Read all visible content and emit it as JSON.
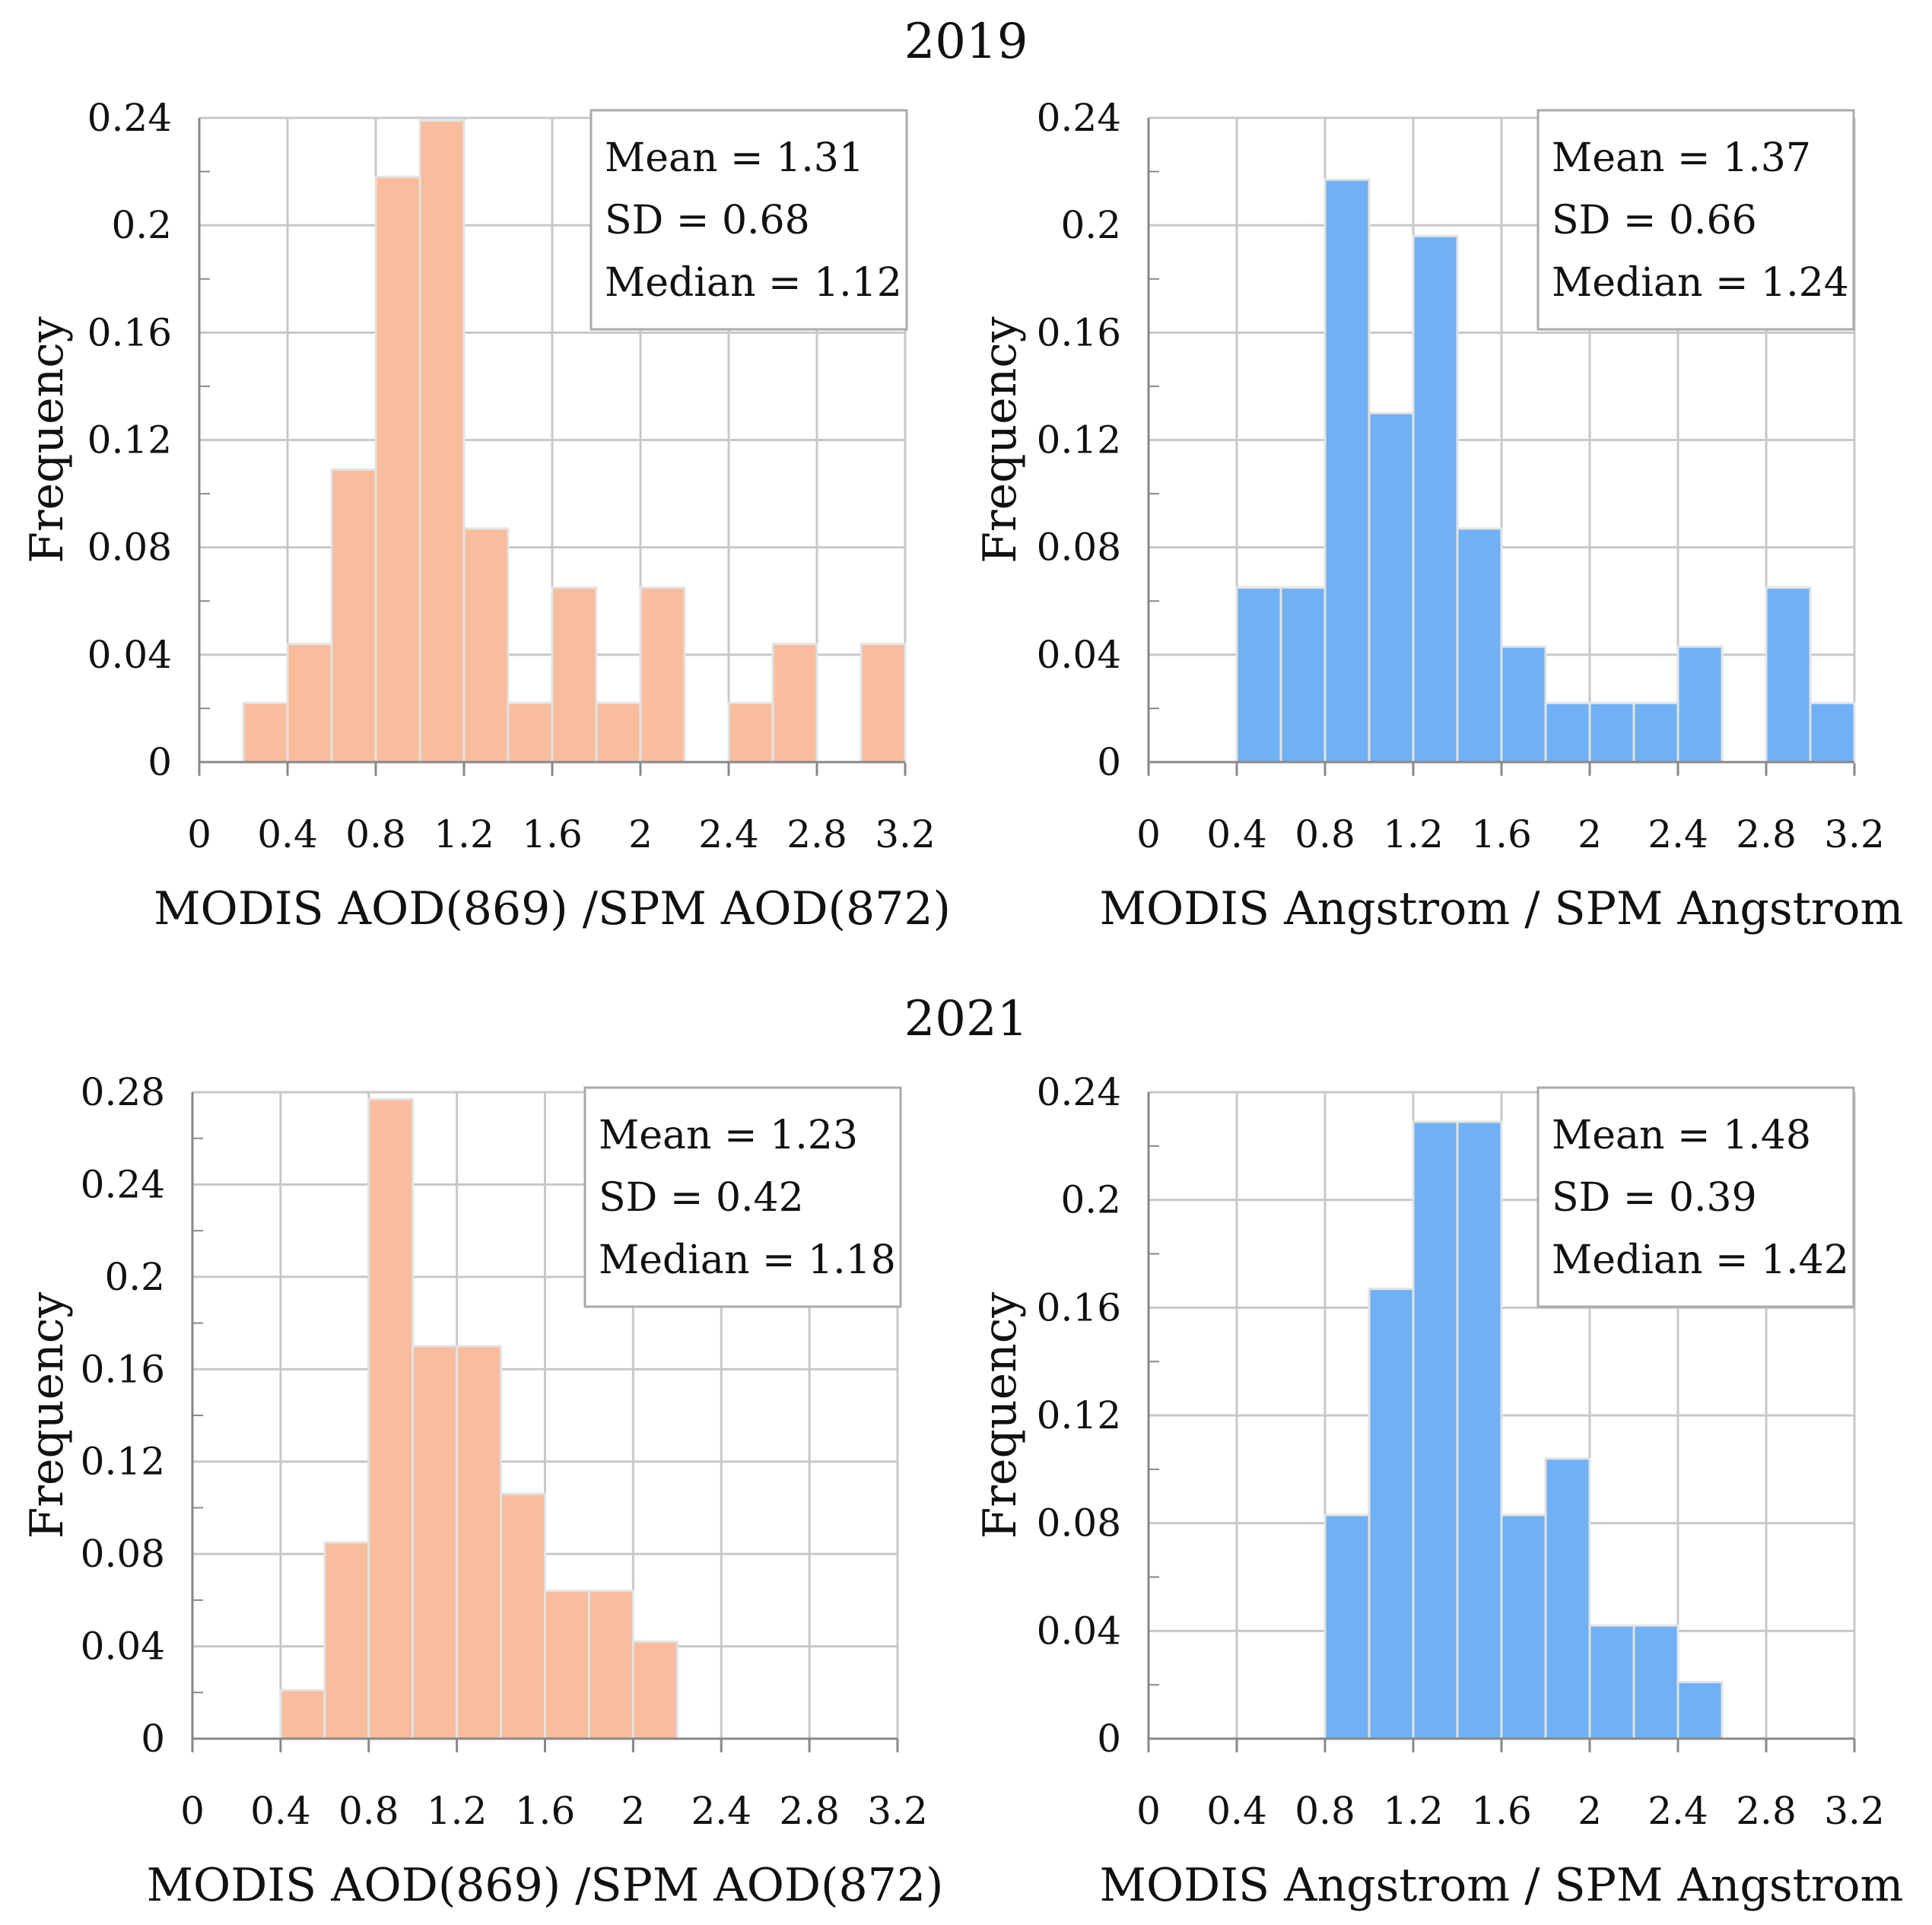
{
  "figure": {
    "year_titles": [
      "2019",
      "2021"
    ]
  },
  "colors": {
    "aod_fill": "#f9bc9c",
    "angstrom_fill": "#6fb1f4",
    "bar_stroke": "#e3e3e3",
    "grid": "#c8c8c8",
    "axis": "#888888"
  },
  "chart_data": [
    {
      "type": "bar",
      "year": "2019",
      "title": "",
      "xlabel": "MODIS AOD(869) /SPM AOD(872)",
      "ylabel": "Frequency",
      "xlim": [
        0,
        3.2
      ],
      "ylim": [
        0,
        0.24
      ],
      "xticks": [
        "0",
        "0.4",
        "0.8",
        "1.2",
        "1.6",
        "2",
        "2.4",
        "2.8",
        "3.2"
      ],
      "yticks": [
        "0",
        "0.04",
        "0.08",
        "0.12",
        "0.16",
        "0.2",
        "0.24"
      ],
      "bin_width": 0.2,
      "bin_starts": [
        0.2,
        0.4,
        0.6,
        0.8,
        1.0,
        1.2,
        1.4,
        1.6,
        1.8,
        2.0,
        2.2,
        2.4,
        2.6,
        2.8,
        3.0
      ],
      "values": [
        0.022,
        0.044,
        0.109,
        0.218,
        0.239,
        0.087,
        0.022,
        0.065,
        0.022,
        0.065,
        0,
        0.022,
        0.044,
        0,
        0.044
      ],
      "color": "aod",
      "stats": [
        "Mean = 1.31",
        "SD = 0.68",
        "Median = 1.12"
      ]
    },
    {
      "type": "bar",
      "year": "2019",
      "title": "",
      "xlabel": "MODIS Angstrom / SPM Angstrom",
      "ylabel": "Frequency",
      "xlim": [
        0,
        3.2
      ],
      "ylim": [
        0,
        0.24
      ],
      "xticks": [
        "0",
        "0.4",
        "0.8",
        "1.2",
        "1.6",
        "2",
        "2.4",
        "2.8",
        "3.2"
      ],
      "yticks": [
        "0",
        "0.04",
        "0.08",
        "0.12",
        "0.16",
        "0.2",
        "0.24"
      ],
      "bin_width": 0.2,
      "bin_starts": [
        0.4,
        0.6,
        0.8,
        1.0,
        1.2,
        1.4,
        1.6,
        1.8,
        2.0,
        2.2,
        2.4,
        2.6,
        2.8,
        3.0
      ],
      "values": [
        0.065,
        0.065,
        0.217,
        0.13,
        0.196,
        0.087,
        0.043,
        0.022,
        0.022,
        0.022,
        0.043,
        0,
        0.065,
        0.022
      ],
      "color": "angstrom",
      "stats": [
        "Mean = 1.37",
        "SD = 0.66",
        "Median = 1.24"
      ]
    },
    {
      "type": "bar",
      "year": "2021",
      "title": "",
      "xlabel": "MODIS AOD(869) /SPM AOD(872)",
      "ylabel": "Frequency",
      "xlim": [
        0,
        3.2
      ],
      "ylim": [
        0,
        0.28
      ],
      "xticks": [
        "0",
        "0.4",
        "0.8",
        "1.2",
        "1.6",
        "2",
        "2.4",
        "2.8",
        "3.2"
      ],
      "yticks": [
        "0",
        "0.04",
        "0.08",
        "0.12",
        "0.16",
        "0.2",
        "0.24",
        "0.28"
      ],
      "bin_width": 0.2,
      "bin_starts": [
        0.4,
        0.6,
        0.8,
        1.0,
        1.2,
        1.4,
        1.6,
        1.8,
        2.0
      ],
      "values": [
        0.021,
        0.085,
        0.277,
        0.17,
        0.17,
        0.106,
        0.064,
        0.064,
        0.042
      ],
      "color": "aod",
      "stats": [
        "Mean = 1.23",
        "SD = 0.42",
        "Median = 1.18"
      ]
    },
    {
      "type": "bar",
      "year": "2021",
      "title": "",
      "xlabel": "MODIS Angstrom / SPM Angstrom",
      "ylabel": "Frequency",
      "xlim": [
        0,
        3.2
      ],
      "ylim": [
        0,
        0.24
      ],
      "xticks": [
        "0",
        "0.4",
        "0.8",
        "1.2",
        "1.6",
        "2",
        "2.4",
        "2.8",
        "3.2"
      ],
      "yticks": [
        "0",
        "0.04",
        "0.08",
        "0.12",
        "0.16",
        "0.2",
        "0.24"
      ],
      "bin_width": 0.2,
      "bin_starts": [
        0.8,
        1.0,
        1.2,
        1.4,
        1.6,
        1.8,
        2.0,
        2.2,
        2.4
      ],
      "values": [
        0.083,
        0.167,
        0.229,
        0.229,
        0.083,
        0.104,
        0.042,
        0.042,
        0.021
      ],
      "color": "angstrom",
      "stats": [
        "Mean = 1.48",
        "SD = 0.39",
        "Median = 1.42"
      ]
    }
  ]
}
